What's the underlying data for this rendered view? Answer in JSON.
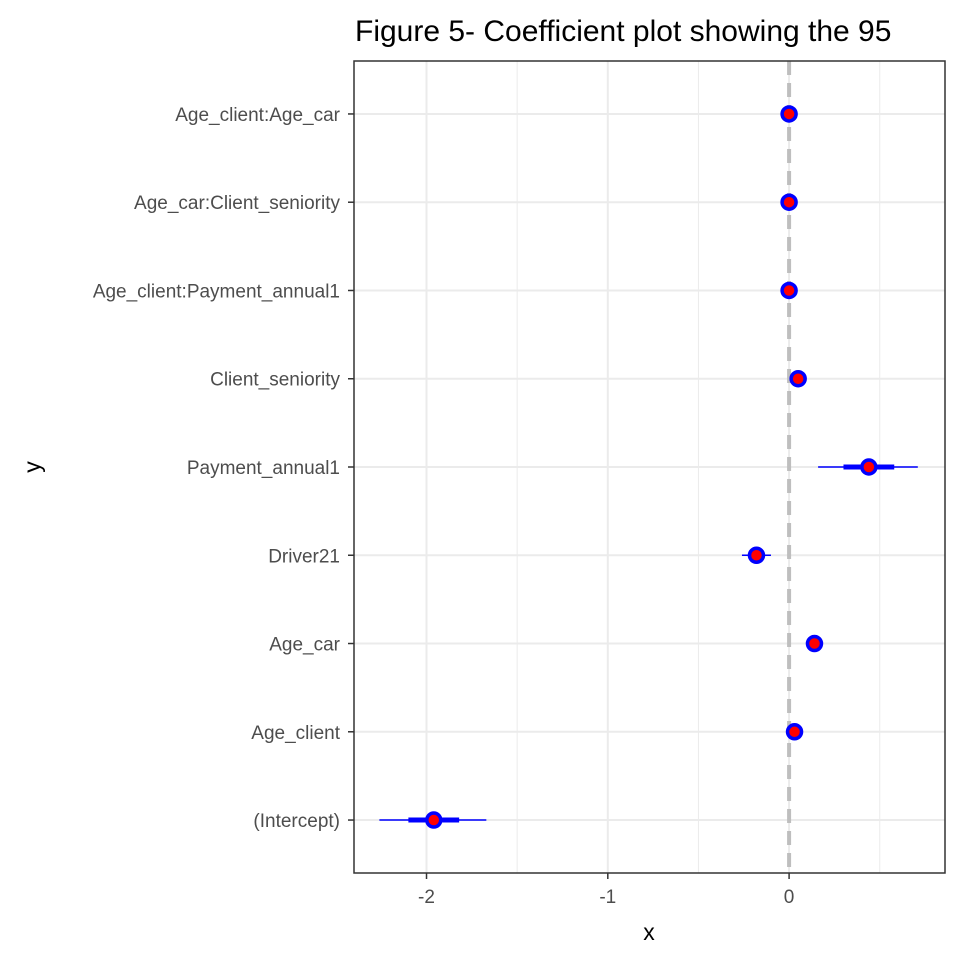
{
  "chart_data": {
    "type": "scatter",
    "subtype": "coefficient-plot",
    "title": "Figure 5- Coefficient plot showing the 95",
    "xlabel": "x",
    "ylabel": "y",
    "xlim": [
      -2.4,
      0.86
    ],
    "x_ticks": [
      {
        "value": -2,
        "label": "-2"
      },
      {
        "value": -1,
        "label": "-1"
      },
      {
        "value": 0,
        "label": "0"
      }
    ],
    "categories": [
      "(Intercept)",
      "Age_client",
      "Age_car",
      "Driver21",
      "Payment_annual1",
      "Client_seniority",
      "Age_client:Payment_annual1",
      "Age_car:Client_seniority",
      "Age_client:Age_car"
    ],
    "estimates": [
      -1.96,
      0.03,
      0.14,
      -0.18,
      0.44,
      0.05,
      0.0,
      0.0,
      0.0
    ],
    "ci_inner": [
      [
        -2.1,
        -1.82
      ],
      [
        0.02,
        0.04
      ],
      [
        0.13,
        0.15
      ],
      [
        -0.22,
        -0.14
      ],
      [
        0.3,
        0.58
      ],
      [
        0.04,
        0.06
      ],
      [
        -0.005,
        0.005
      ],
      [
        -0.005,
        0.005
      ],
      [
        -0.005,
        0.005
      ]
    ],
    "ci_outer": [
      [
        -2.26,
        -1.67
      ],
      [
        0.01,
        0.05
      ],
      [
        0.12,
        0.16
      ],
      [
        -0.26,
        -0.1
      ],
      [
        0.16,
        0.71
      ],
      [
        0.03,
        0.07
      ],
      [
        -0.01,
        0.01
      ],
      [
        -0.01,
        0.01
      ],
      [
        -0.01,
        0.01
      ]
    ],
    "reference_line": 0,
    "grid": true,
    "colors": {
      "point_fill": "#ff0000",
      "point_outline": "#0000ff",
      "ci": "#0000ff",
      "reference_line": "#bebebe",
      "grid": "#ebebeb",
      "panel_border": "#333333"
    }
  }
}
